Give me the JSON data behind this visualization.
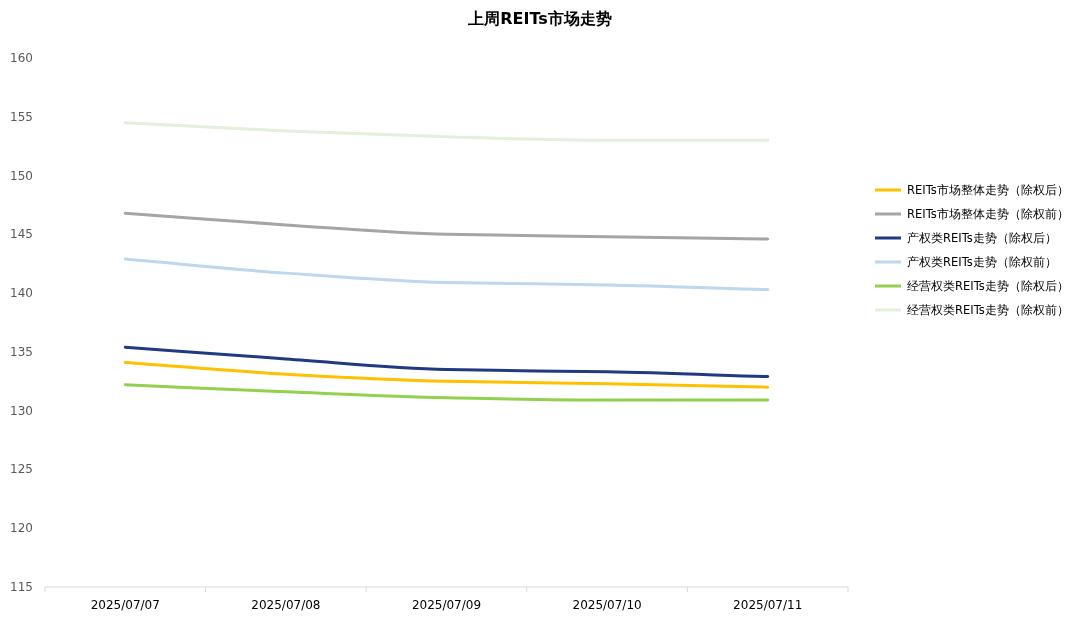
{
  "chart_data": {
    "type": "line",
    "title": "上周REITs市场走势",
    "categories": [
      "2025/07/07",
      "2025/07/08",
      "2025/07/09",
      "2025/07/10",
      "2025/07/11"
    ],
    "ylim": [
      115,
      160
    ],
    "yticks": [
      115,
      120,
      125,
      130,
      135,
      140,
      145,
      150,
      155,
      160
    ],
    "grid": false,
    "legend": "right",
    "marker": "none",
    "line_style": "solid",
    "series": [
      {
        "name": "REITs市场整体走势（除权后）",
        "color": "#ffc000",
        "values": [
          134.1,
          133.1,
          132.5,
          132.3,
          132.0
        ]
      },
      {
        "name": "REITs市场整体走势（除权前）",
        "color": "#a5a5a5",
        "values": [
          146.8,
          145.8,
          145.0,
          144.8,
          144.6
        ]
      },
      {
        "name": "产权类REITs走势（除权后）",
        "color": "#1f3a80",
        "values": [
          135.4,
          134.4,
          133.5,
          133.3,
          132.9
        ]
      },
      {
        "name": "产权类REITs走势（除权前）",
        "color": "#bdd7ee",
        "values": [
          142.9,
          141.7,
          140.9,
          140.7,
          140.3
        ]
      },
      {
        "name": "经营权类REITs走势（除权后）",
        "color": "#92d050",
        "values": [
          132.2,
          131.6,
          131.1,
          130.9,
          130.9
        ]
      },
      {
        "name": "经营权类REITs走势（除权前）",
        "color": "#e2efda",
        "values": [
          154.5,
          153.8,
          153.3,
          153.0,
          153.0
        ]
      }
    ]
  }
}
